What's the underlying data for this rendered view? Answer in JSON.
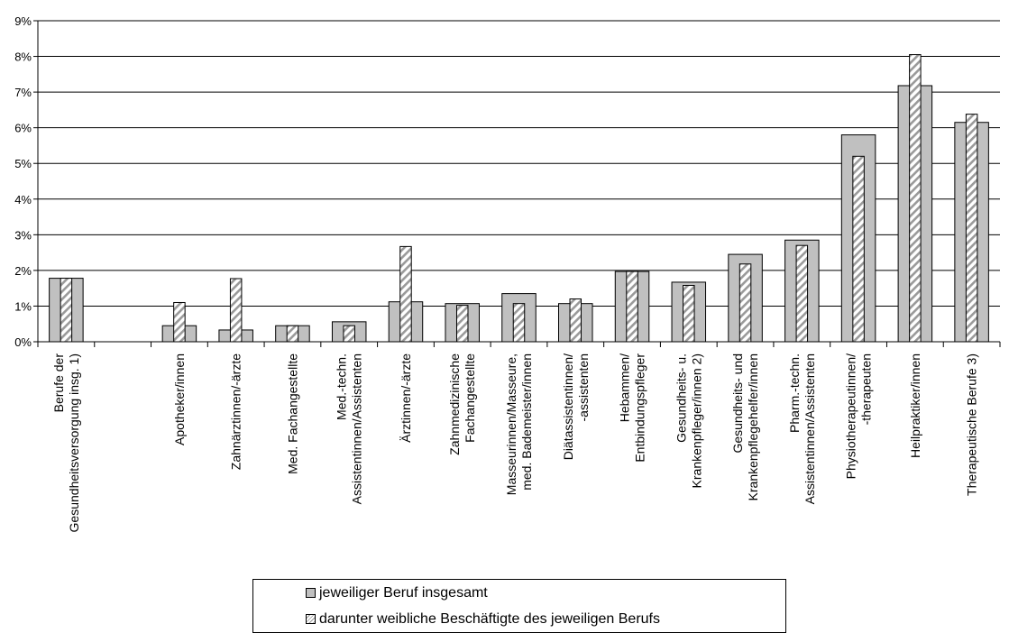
{
  "chart_data": {
    "type": "bar",
    "title": "",
    "xlabel": "",
    "ylabel": "",
    "ylim": [
      0,
      9
    ],
    "yticks": [
      "0%",
      "1%",
      "2%",
      "3%",
      "4%",
      "5%",
      "6%",
      "7%",
      "8%",
      "9%"
    ],
    "grid": "horizontal",
    "legend_position": "bottom",
    "categories": [
      [
        "Berufe der",
        "Gesundheitsversorgung insg. 1)"
      ],
      [
        ""
      ],
      [
        "Apotheker/innen"
      ],
      [
        "Zahnärztinnen/-ärzte"
      ],
      [
        "Med. Fachangestellte"
      ],
      [
        "Med.-techn.",
        "Assistentinnen/Assistenten"
      ],
      [
        "Ärztinnen/-ärzte"
      ],
      [
        "Zahnmedizinische",
        "Fachangestellte"
      ],
      [
        "Masseurinnen/Masseure,",
        "med. Bademeister/innen"
      ],
      [
        "Diätassistentinnen/",
        "-assistenten"
      ],
      [
        "Hebammen/",
        "Entbindungspfleger"
      ],
      [
        "Gesundheits- u.",
        "Krankenpfleger/innen 2)"
      ],
      [
        "Gesundheits- und",
        "Krankenpflegehelfer/innen"
      ],
      [
        "Pharm.-techn.",
        "Assistentinnen/Assistenten"
      ],
      [
        "Physiotherapeutinnen/",
        "-therapeuten"
      ],
      [
        "Heilpraktiker/innen"
      ],
      [
        "Therapeutische Berufe 3)"
      ]
    ],
    "series": [
      {
        "name": "jeweiliger Beruf insgesamt",
        "color": "#c0c0c0",
        "values": [
          1.78,
          null,
          0.45,
          0.33,
          0.45,
          0.56,
          1.12,
          1.07,
          1.35,
          1.07,
          1.97,
          1.67,
          2.45,
          2.85,
          5.8,
          7.18,
          6.15
        ]
      },
      {
        "name": "darunter weibliche Beschäftigte des jeweiligen Berufs",
        "pattern": "diagonal-hatch",
        "values": [
          1.78,
          null,
          1.1,
          1.77,
          0.45,
          0.45,
          2.67,
          1.02,
          1.07,
          1.2,
          1.97,
          1.58,
          2.18,
          2.7,
          5.2,
          8.05,
          6.38
        ]
      }
    ]
  }
}
